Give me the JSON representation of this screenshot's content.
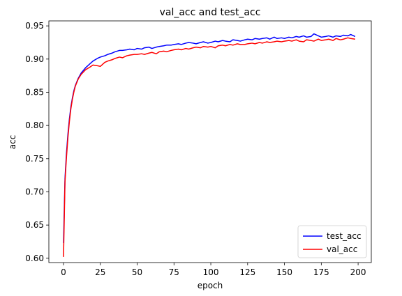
{
  "chart_data": {
    "type": "line",
    "title": "val_acc and test_acc",
    "xlabel": "epoch",
    "ylabel": "acc",
    "xlim": [
      -9.95,
      208.95
    ],
    "ylim": [
      0.5935,
      0.9575
    ],
    "xticks": [
      0,
      25,
      50,
      75,
      100,
      125,
      150,
      175,
      200
    ],
    "yticks": [
      0.6,
      0.65,
      0.7,
      0.75,
      0.8,
      0.85,
      0.9,
      0.95
    ],
    "xtick_labels": [
      "0",
      "25",
      "50",
      "75",
      "100",
      "125",
      "150",
      "175",
      "200"
    ],
    "ytick_labels": [
      "0.60",
      "0.65",
      "0.70",
      "0.75",
      "0.80",
      "0.85",
      "0.90",
      "0.95"
    ],
    "grid": false,
    "legend_position": "lower-right",
    "series": [
      {
        "name": "test_acc",
        "color": "#0000ff",
        "x": [
          0,
          1,
          2,
          3,
          4,
          5,
          6,
          7,
          8,
          10,
          12,
          15,
          18,
          20,
          23,
          25,
          28,
          30,
          33,
          35,
          38,
          40,
          43,
          45,
          48,
          50,
          53,
          55,
          58,
          60,
          63,
          65,
          68,
          70,
          73,
          75,
          78,
          80,
          83,
          85,
          88,
          90,
          93,
          95,
          98,
          100,
          103,
          105,
          108,
          110,
          113,
          115,
          118,
          120,
          123,
          125,
          128,
          130,
          133,
          135,
          138,
          140,
          143,
          145,
          148,
          150,
          153,
          155,
          158,
          160,
          163,
          165,
          168,
          170,
          173,
          175,
          178,
          180,
          183,
          185,
          188,
          190,
          193,
          195,
          198
        ],
        "y": [
          0.623,
          0.72,
          0.758,
          0.787,
          0.81,
          0.828,
          0.841,
          0.852,
          0.86,
          0.871,
          0.879,
          0.887,
          0.893,
          0.897,
          0.901,
          0.903,
          0.905,
          0.907,
          0.909,
          0.911,
          0.913,
          0.913,
          0.914,
          0.915,
          0.914,
          0.916,
          0.915,
          0.917,
          0.918,
          0.916,
          0.918,
          0.919,
          0.92,
          0.921,
          0.921,
          0.922,
          0.923,
          0.922,
          0.924,
          0.925,
          0.924,
          0.923,
          0.925,
          0.926,
          0.924,
          0.925,
          0.927,
          0.926,
          0.928,
          0.927,
          0.926,
          0.929,
          0.928,
          0.927,
          0.929,
          0.93,
          0.929,
          0.931,
          0.93,
          0.931,
          0.932,
          0.93,
          0.933,
          0.931,
          0.932,
          0.931,
          0.933,
          0.932,
          0.934,
          0.933,
          0.935,
          0.933,
          0.934,
          0.938,
          0.935,
          0.933,
          0.934,
          0.935,
          0.933,
          0.935,
          0.934,
          0.936,
          0.935,
          0.937,
          0.934
        ]
      },
      {
        "name": "val_acc",
        "color": "#ff0000",
        "x": [
          0,
          1,
          2,
          3,
          4,
          5,
          6,
          7,
          8,
          10,
          12,
          15,
          18,
          20,
          23,
          25,
          28,
          30,
          33,
          35,
          38,
          40,
          43,
          45,
          48,
          50,
          53,
          55,
          58,
          60,
          63,
          65,
          68,
          70,
          73,
          75,
          78,
          80,
          83,
          85,
          88,
          90,
          93,
          95,
          98,
          100,
          103,
          105,
          108,
          110,
          113,
          115,
          118,
          120,
          123,
          125,
          128,
          130,
          133,
          135,
          138,
          140,
          143,
          145,
          148,
          150,
          153,
          155,
          158,
          160,
          163,
          165,
          168,
          170,
          173,
          175,
          178,
          180,
          183,
          185,
          188,
          190,
          193,
          195,
          198
        ],
        "y": [
          0.602,
          0.715,
          0.752,
          0.782,
          0.806,
          0.825,
          0.839,
          0.85,
          0.859,
          0.87,
          0.877,
          0.884,
          0.888,
          0.891,
          0.89,
          0.889,
          0.895,
          0.897,
          0.899,
          0.901,
          0.903,
          0.902,
          0.905,
          0.906,
          0.907,
          0.907,
          0.908,
          0.907,
          0.909,
          0.91,
          0.908,
          0.911,
          0.912,
          0.911,
          0.913,
          0.914,
          0.915,
          0.914,
          0.916,
          0.915,
          0.917,
          0.918,
          0.917,
          0.919,
          0.918,
          0.919,
          0.917,
          0.92,
          0.921,
          0.92,
          0.922,
          0.921,
          0.923,
          0.922,
          0.922,
          0.923,
          0.924,
          0.923,
          0.925,
          0.924,
          0.926,
          0.925,
          0.926,
          0.927,
          0.926,
          0.927,
          0.928,
          0.927,
          0.929,
          0.927,
          0.926,
          0.929,
          0.928,
          0.927,
          0.93,
          0.928,
          0.929,
          0.93,
          0.928,
          0.931,
          0.929,
          0.93,
          0.932,
          0.931,
          0.93
        ]
      }
    ]
  }
}
